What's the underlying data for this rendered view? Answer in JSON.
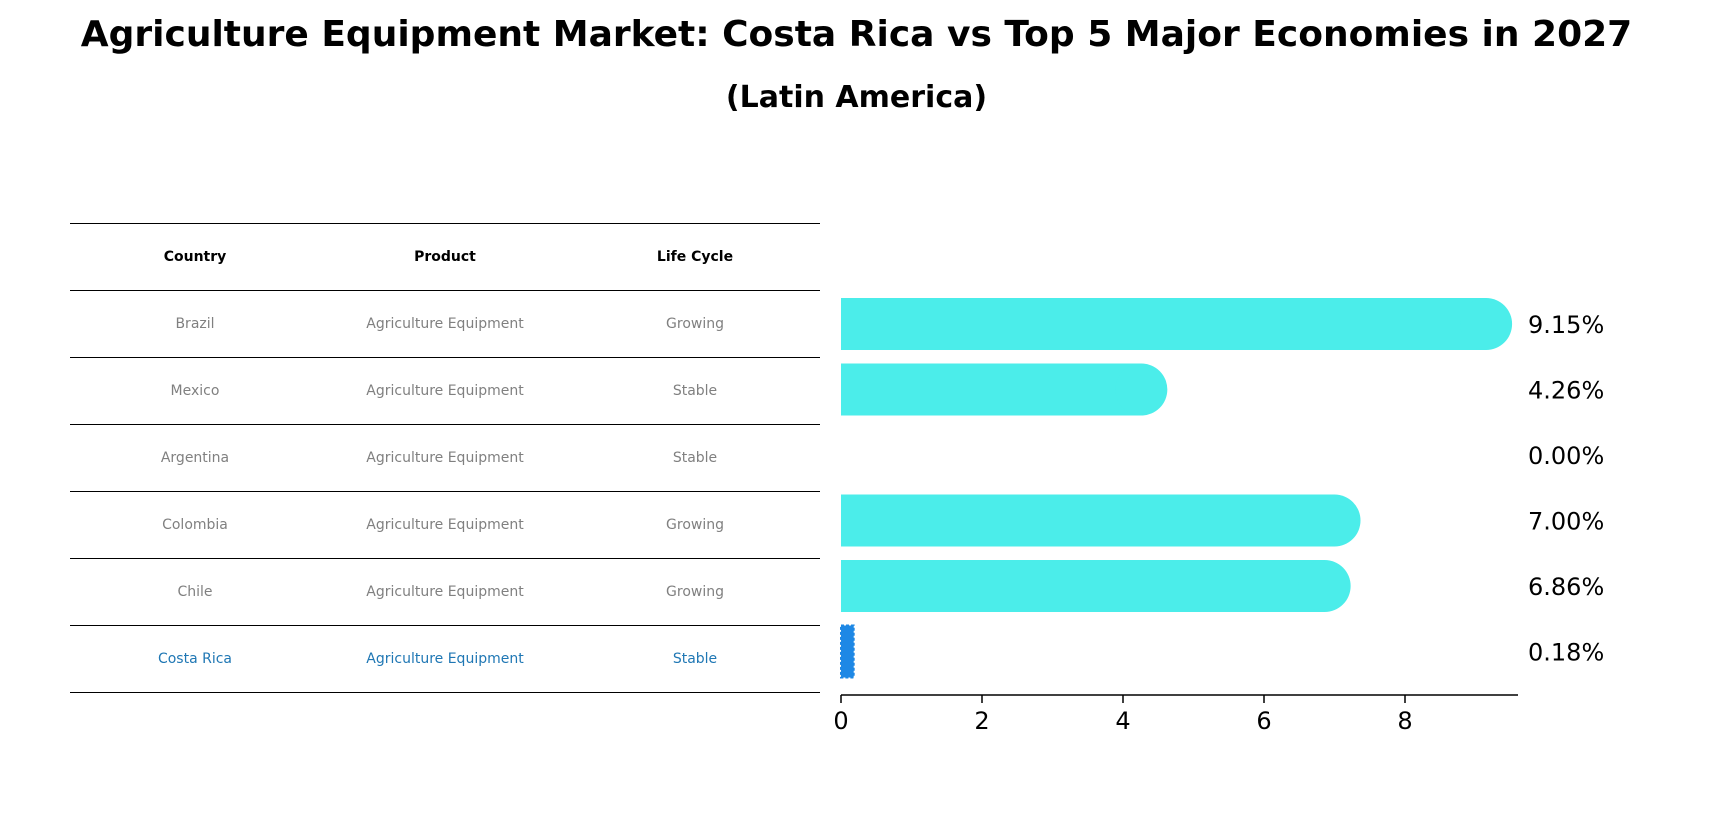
{
  "title": "Agriculture Equipment Market: Costa Rica vs Top 5 Major Economies in 2027",
  "subtitle": "(Latin America)",
  "table": {
    "headers": [
      "Country",
      "Product",
      "Life Cycle"
    ],
    "rows": [
      [
        "Brazil",
        "Agriculture Equipment",
        "Growing"
      ],
      [
        "Mexico",
        "Agriculture Equipment",
        "Stable"
      ],
      [
        "Argentina",
        "Agriculture Equipment",
        "Stable"
      ],
      [
        "Colombia",
        "Agriculture Equipment",
        "Growing"
      ],
      [
        "Chile",
        "Agriculture Equipment",
        "Growing"
      ],
      [
        "Costa Rica",
        "Agriculture Equipment",
        "Stable"
      ]
    ]
  },
  "chart_data": {
    "type": "bar",
    "orientation": "horizontal",
    "categories": [
      "Brazil",
      "Mexico",
      "Argentina",
      "Colombia",
      "Chile",
      "Costa Rica"
    ],
    "values": [
      9.15,
      4.26,
      0.0,
      7.0,
      6.86,
      0.18
    ],
    "value_labels": [
      "9.15%",
      "4.26%",
      "0.00%",
      "7.00%",
      "6.86%",
      "0.18%"
    ],
    "xlim": [
      0,
      9.6
    ],
    "xticks": [
      0,
      2,
      4,
      6,
      8
    ],
    "grid": false,
    "colors": {
      "bar": "#4BEDEA",
      "highlight": "#1E88E5",
      "highlight_text": "#1f77b4"
    }
  }
}
